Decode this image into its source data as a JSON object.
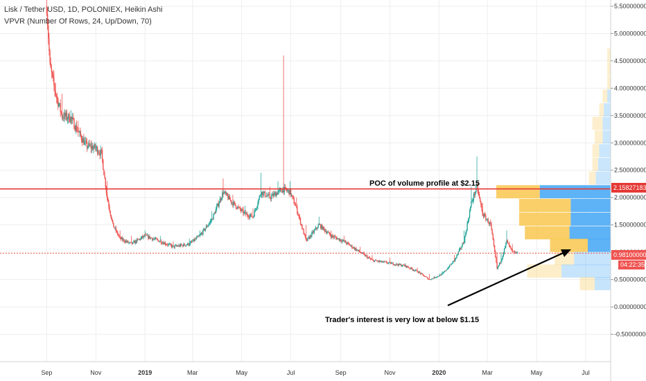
{
  "header": {
    "symbol_line": "Lisk / Tether USD, 1D, POLONIEX, Heikin Ashi",
    "indicator_line": "VPVR (Number Of Rows, 24, Up/Down, 70)"
  },
  "colors": {
    "up": "#26a69a",
    "down": "#ef5350",
    "poc_line": "#e53935",
    "vp_up": "#f9c74f",
    "vp_down": "#42a5f5",
    "grid": "#eeeeee"
  },
  "price_tags": {
    "poc": "2.15827183",
    "last": "0.98100000",
    "countdown": "04:22:35"
  },
  "annotations": {
    "poc_text": "POC of volume profile at $2.15",
    "interest_text": "Trader's interest is very low at below $1.15"
  },
  "chart_data": {
    "type": "candlestick",
    "chart_style": "Heikin Ashi",
    "y_axis": {
      "side": "right",
      "ticks": [
        "5.50000000",
        "5.00000000",
        "4.50000000",
        "4.00000000",
        "3.50000000",
        "3.00000000",
        "2.50000000",
        "2.00000000",
        "1.50000000",
        "1.00000000",
        "0.50000000",
        "0.00000000",
        "-0.50000000"
      ],
      "tick_values": [
        5.5,
        5.0,
        4.5,
        4.0,
        3.5,
        3.0,
        2.5,
        2.0,
        1.5,
        1.0,
        0.5,
        0.0,
        -0.5
      ],
      "range": [
        -1.0,
        5.55
      ]
    },
    "x_axis": {
      "ticks": [
        {
          "label": "Sep",
          "date": "2018-09-01",
          "bold": false
        },
        {
          "label": "Nov",
          "date": "2018-11-01",
          "bold": false
        },
        {
          "label": "2019",
          "date": "2019-01-01",
          "bold": true
        },
        {
          "label": "Mar",
          "date": "2019-03-01",
          "bold": false
        },
        {
          "label": "May",
          "date": "2019-05-01",
          "bold": false
        },
        {
          "label": "Jul",
          "date": "2019-07-01",
          "bold": false
        },
        {
          "label": "Sep",
          "date": "2019-09-01",
          "bold": false
        },
        {
          "label": "Nov",
          "date": "2019-11-01",
          "bold": false
        },
        {
          "label": "2020",
          "date": "2020-01-01",
          "bold": true
        },
        {
          "label": "Mar",
          "date": "2020-03-01",
          "bold": false
        },
        {
          "label": "May",
          "date": "2020-05-01",
          "bold": false
        },
        {
          "label": "Jul",
          "date": "2020-07-01",
          "bold": false
        }
      ],
      "range": [
        "2018-07-05",
        "2020-08-01"
      ]
    },
    "price_path": [
      {
        "date": "2018-09-01",
        "close": 5.5,
        "high": 5.55
      },
      {
        "date": "2018-09-05",
        "close": 4.4,
        "high": 4.7
      },
      {
        "date": "2018-09-12",
        "close": 3.9,
        "high": 4.1
      },
      {
        "date": "2018-09-20",
        "close": 3.5,
        "high": 3.9
      },
      {
        "date": "2018-10-01",
        "close": 3.45,
        "high": 3.6
      },
      {
        "date": "2018-10-10",
        "close": 3.2,
        "high": 3.4
      },
      {
        "date": "2018-10-20",
        "close": 2.95,
        "high": 3.05
      },
      {
        "date": "2018-11-01",
        "close": 2.9,
        "high": 3.0
      },
      {
        "date": "2018-11-08",
        "close": 2.8,
        "high": 2.9
      },
      {
        "date": "2018-11-15",
        "close": 2.0,
        "high": 2.3
      },
      {
        "date": "2018-11-22",
        "close": 1.5,
        "high": 1.6
      },
      {
        "date": "2018-12-01",
        "close": 1.25,
        "high": 1.4
      },
      {
        "date": "2018-12-15",
        "close": 1.15,
        "high": 1.3
      },
      {
        "date": "2019-01-01",
        "close": 1.3,
        "high": 1.4
      },
      {
        "date": "2019-01-20",
        "close": 1.2,
        "high": 1.3
      },
      {
        "date": "2019-02-05",
        "close": 1.1,
        "high": 1.2
      },
      {
        "date": "2019-02-25",
        "close": 1.15,
        "high": 1.25
      },
      {
        "date": "2019-03-10",
        "close": 1.3,
        "high": 1.4
      },
      {
        "date": "2019-03-25",
        "close": 1.6,
        "high": 1.75
      },
      {
        "date": "2019-04-08",
        "close": 2.1,
        "high": 2.35
      },
      {
        "date": "2019-04-20",
        "close": 1.9,
        "high": 2.05
      },
      {
        "date": "2019-05-05",
        "close": 1.7,
        "high": 1.85
      },
      {
        "date": "2019-05-15",
        "close": 1.65,
        "high": 1.8
      },
      {
        "date": "2019-05-25",
        "close": 2.1,
        "high": 2.45
      },
      {
        "date": "2019-06-05",
        "close": 2.0,
        "high": 2.2
      },
      {
        "date": "2019-06-15",
        "close": 2.1,
        "high": 2.3
      },
      {
        "date": "2019-06-22",
        "close": 2.15,
        "high": 4.6
      },
      {
        "date": "2019-06-30",
        "close": 2.1,
        "high": 2.3
      },
      {
        "date": "2019-07-08",
        "close": 1.8,
        "high": 2.0
      },
      {
        "date": "2019-07-20",
        "close": 1.2,
        "high": 1.5
      },
      {
        "date": "2019-08-05",
        "close": 1.5,
        "high": 1.65
      },
      {
        "date": "2019-08-20",
        "close": 1.3,
        "high": 1.4
      },
      {
        "date": "2019-09-05",
        "close": 1.2,
        "high": 1.3
      },
      {
        "date": "2019-09-25",
        "close": 1.0,
        "high": 1.1
      },
      {
        "date": "2019-10-10",
        "close": 0.85,
        "high": 0.95
      },
      {
        "date": "2019-11-01",
        "close": 0.8,
        "high": 0.9
      },
      {
        "date": "2019-11-20",
        "close": 0.75,
        "high": 0.8
      },
      {
        "date": "2019-12-05",
        "close": 0.65,
        "high": 0.72
      },
      {
        "date": "2019-12-20",
        "close": 0.5,
        "high": 0.6
      },
      {
        "date": "2020-01-05",
        "close": 0.6,
        "high": 0.65
      },
      {
        "date": "2020-01-20",
        "close": 0.85,
        "high": 0.95
      },
      {
        "date": "2020-02-01",
        "close": 1.2,
        "high": 1.4
      },
      {
        "date": "2020-02-10",
        "close": 1.9,
        "high": 2.2
      },
      {
        "date": "2020-02-17",
        "close": 2.2,
        "high": 2.75
      },
      {
        "date": "2020-02-24",
        "close": 1.7,
        "high": 1.9
      },
      {
        "date": "2020-03-05",
        "close": 1.5,
        "high": 1.6
      },
      {
        "date": "2020-03-13",
        "close": 0.7,
        "high": 1.0
      },
      {
        "date": "2020-03-18",
        "close": 0.85,
        "high": 1.0
      },
      {
        "date": "2020-03-25",
        "close": 1.2,
        "high": 1.4
      },
      {
        "date": "2020-04-01",
        "close": 1.0,
        "high": 1.15
      },
      {
        "date": "2020-04-08",
        "close": 0.98,
        "high": 1.05
      }
    ],
    "poc_price": 2.15827183,
    "last_price": 0.981,
    "volume_profile_right": {
      "note": "main VPVR rows (fraction of widest row), up/down split",
      "rows": [
        {
          "price": 2.1,
          "up": 0.38,
          "down": 0.62
        },
        {
          "price": 1.85,
          "up": 0.45,
          "down": 0.35
        },
        {
          "price": 1.6,
          "up": 0.45,
          "down": 0.35
        },
        {
          "price": 1.35,
          "up": 0.39,
          "down": 0.36
        },
        {
          "price": 1.12,
          "up": 0.33,
          "down": 0.2
        },
        {
          "price": 0.88,
          "up": 0.17,
          "down": 0.32
        },
        {
          "price": 0.65,
          "up": 0.3,
          "down": 0.43
        },
        {
          "price": 0.42,
          "up": 0.13,
          "down": 0.14
        }
      ]
    },
    "volume_profile_faded": {
      "rows": [
        {
          "price": 4.6,
          "up": 0.03,
          "down": 0.0
        },
        {
          "price": 4.35,
          "up": 0.03,
          "down": 0.0
        },
        {
          "price": 4.1,
          "up": 0.03,
          "down": 0.0
        },
        {
          "price": 3.85,
          "up": 0.04,
          "down": 0.03
        },
        {
          "price": 3.6,
          "up": 0.04,
          "down": 0.06
        },
        {
          "price": 3.35,
          "up": 0.09,
          "down": 0.07
        },
        {
          "price": 3.1,
          "up": 0.07,
          "down": 0.07
        },
        {
          "price": 2.85,
          "up": 0.06,
          "down": 0.1
        },
        {
          "price": 2.6,
          "up": 0.05,
          "down": 0.11
        },
        {
          "price": 2.35,
          "up": 0.06,
          "down": 0.13
        }
      ]
    }
  }
}
